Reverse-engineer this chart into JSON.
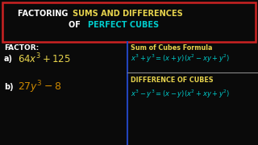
{
  "bg": "#0a0a0a",
  "title_border": "#cc2222",
  "white": "#ffffff",
  "yellow": "#e8d44d",
  "cyan": "#00cccc",
  "orange": "#cc8800",
  "blue_divider": "#2244bb",
  "grey_divider": "#888888",
  "title1_white": "FACTORING ",
  "title1_yellow": "SUMS AND DIFFERENCES",
  "title2_white": "OF  ",
  "title2_cyan": "PERFECT CUBES",
  "left_label": "FACTOR:",
  "item_a_label": "a)",
  "item_a_expr": "$64x^3 + 125$",
  "item_b_label": "b)",
  "item_b_expr": "$27y^3 - 8$",
  "sum_label": "Sum of Cubes Formula",
  "sum_formula": "$x^3+y^3 = (x+y)(x^2-xy+y^2)$",
  "diff_label": "DIFFERENCE OF CUBES",
  "diff_formula": "$x^3-y^3 = (x-y)(x^2+xy+y^2)$"
}
